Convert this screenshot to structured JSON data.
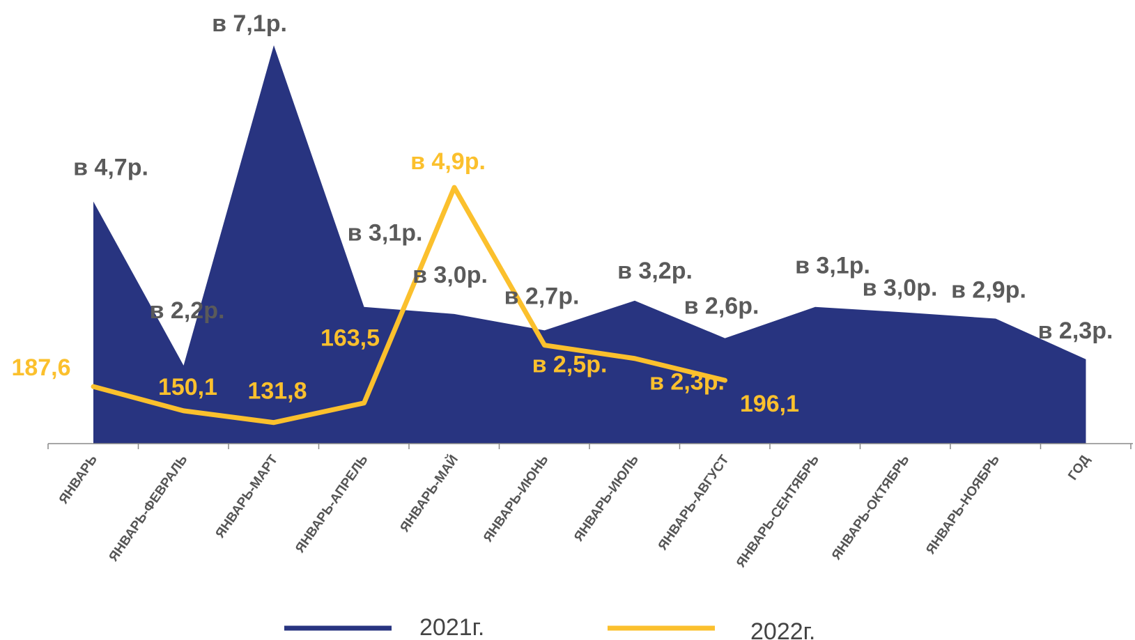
{
  "chart_data": {
    "type": "area",
    "categories": [
      "ЯНВАРЬ",
      "ЯНВАРЬ-ФЕВРАЛЬ",
      "ЯНВАРЬ-МАРТ",
      "ЯНВАРЬ-АПРЕЛЬ",
      "ЯНВАРЬ-МАЙ",
      "ЯНВАРЬ-ИЮНЬ",
      "ЯНВАРЬ-ИЮЛЬ",
      "ЯНВАРЬ-АВГУСТ",
      "ЯНВАРЬ-СЕНТЯБРЬ",
      "ЯНВАРЬ-ОКТЯБРЬ",
      "ЯНВАРЬ-НОЯБРЬ",
      "ГОД"
    ],
    "ylim": [
      0,
      5.1
    ],
    "grid": false,
    "legend_position": "bottom",
    "series": [
      {
        "name": "2021г.",
        "type": "area",
        "color": "#283480",
        "values": [
          3.1,
          1.0,
          5.1,
          1.75,
          1.66,
          1.45,
          1.83,
          1.35,
          1.75,
          1.68,
          1.6,
          1.08
        ],
        "labels": [
          "в 4,7р.",
          "в 2,2р.",
          "в 7,1р.",
          "в 3,1р.",
          "в 3,0р.",
          "в 2,7р.",
          "в 3,2р.",
          "в 2,6р.",
          "в 3,1р.",
          "в 3,0р.",
          "в 2,9р.",
          "в 2,3р."
        ]
      },
      {
        "name": "2022г.",
        "type": "line",
        "color": "#fbc02d",
        "values": [
          0.73,
          0.42,
          0.27,
          0.52,
          3.28,
          1.26,
          1.09,
          0.81,
          null,
          null,
          null,
          null
        ],
        "labels": [
          "187,6",
          "150,1",
          "131,8",
          "163,5",
          "в 4,9р.",
          "в 2,5р.",
          "в 2,3р.",
          "196,1",
          null,
          null,
          null,
          null
        ]
      }
    ]
  }
}
